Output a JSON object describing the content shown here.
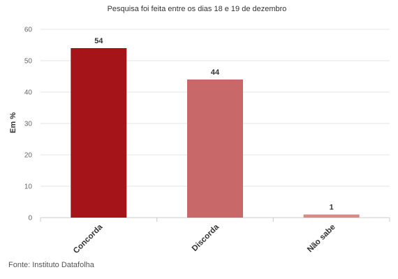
{
  "chart_data": {
    "type": "bar",
    "subtitle": "Pesquisa foi feita entre os dias 18 e 19 de dezembro",
    "ylabel": "Em %",
    "xlabel": "",
    "categories": [
      "Concorda",
      "Discorda",
      "Não sabe"
    ],
    "values": [
      54,
      44,
      1
    ],
    "data_labels": [
      "54",
      "44",
      "1"
    ],
    "colors": [
      "#a51419",
      "#c96868",
      "#d98a86"
    ],
    "ylim": [
      0,
      60
    ],
    "yticks": [
      0,
      10,
      20,
      30,
      40,
      50,
      60
    ],
    "grid": true,
    "legend": "none"
  },
  "footer": {
    "source": "Fonte: Instituto Datafolha"
  },
  "colors": {
    "grid": "#e6e6e6",
    "axis": "#cccccc"
  }
}
